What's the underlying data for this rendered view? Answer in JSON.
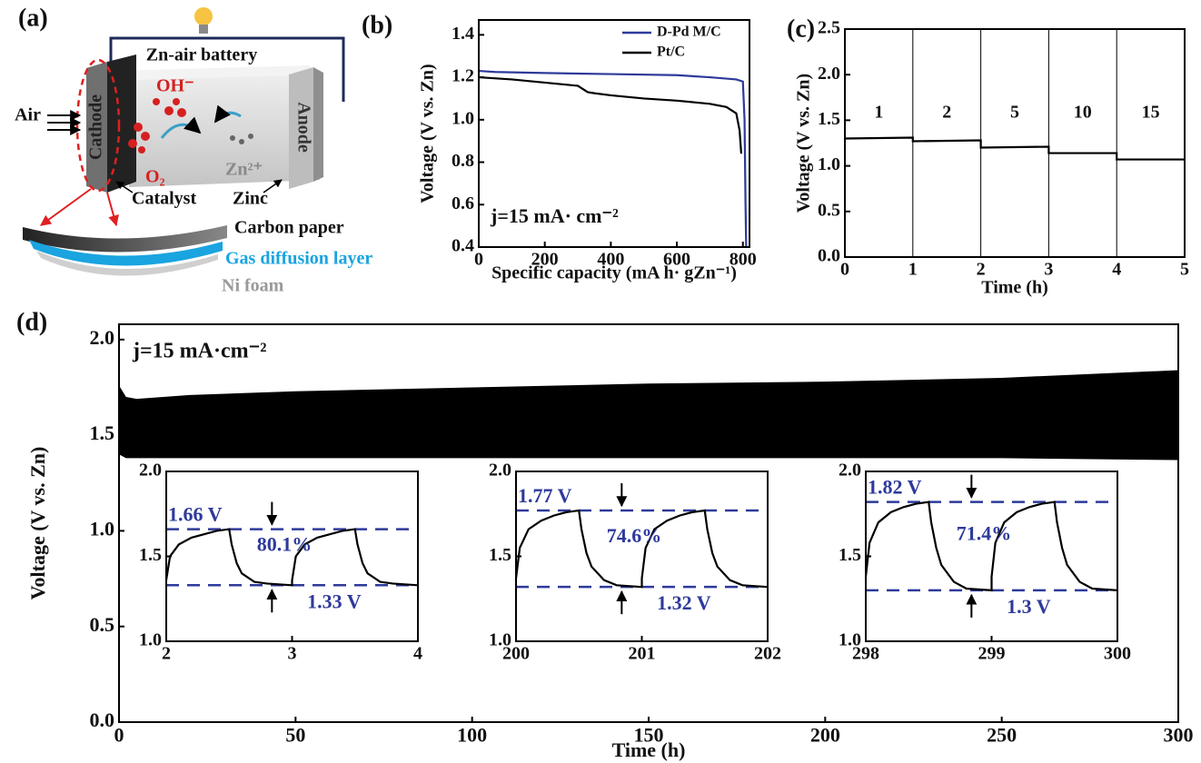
{
  "diagram": {
    "panel_label": "(a)",
    "title": "Zn-air battery",
    "air": "Air",
    "cathode": "Cathode",
    "anode": "Anode",
    "hydroxide": "OH⁻",
    "oxygen": "O₂",
    "zinc_ion": "Zn²⁺",
    "catalyst": "Catalyst",
    "zinc": "Zinc",
    "carbon_paper": "Carbon paper",
    "gas_diffusion_layer": "Gas diffusion layer",
    "ni_foam": "Ni foam"
  },
  "chart_data": [
    {
      "type": "line",
      "panel_label": "(b)",
      "xlabel": "Specific capacity (mA h· gZn⁻¹)",
      "ylabel": "Voltage (V vs. Zn)",
      "annotation": "j=15 mA· cm⁻²",
      "xlim": [
        0,
        820
      ],
      "ylim": [
        0.4,
        1.47
      ],
      "xticks": [
        0,
        200,
        400,
        600,
        800
      ],
      "yticks": [
        0.4,
        0.6,
        0.8,
        {
          "value": 1,
          "label": "1.0"
        },
        1.2,
        1.4
      ],
      "legend": "upper right",
      "series": [
        {
          "name": "D-Pd M/C",
          "color": "#2e3a9a",
          "x": [
            0,
            50,
            200,
            400,
            600,
            700,
            780,
            800,
            805,
            808,
            810
          ],
          "values": [
            1.23,
            1.225,
            1.22,
            1.215,
            1.21,
            1.2,
            1.19,
            1.18,
            1.0,
            0.6,
            0.4
          ]
        },
        {
          "name": "Pt/C",
          "color": "#000000",
          "x": [
            0,
            100,
            200,
            300,
            330,
            350,
            400,
            500,
            600,
            700,
            750,
            780,
            790,
            795
          ],
          "values": [
            1.2,
            1.19,
            1.175,
            1.16,
            1.13,
            1.125,
            1.115,
            1.1,
            1.09,
            1.075,
            1.06,
            1.03,
            0.95,
            0.84
          ]
        }
      ]
    },
    {
      "type": "line",
      "panel_label": "(c)",
      "xlabel": "Time (h)",
      "ylabel": "Voltage (V vs. Zn)",
      "segment_labels": [
        "1",
        "2",
        "5",
        "10",
        "15"
      ],
      "xlim": [
        0,
        5
      ],
      "ylim": [
        0,
        2.5
      ],
      "xticks": [
        0,
        1,
        2,
        3,
        4,
        5
      ],
      "yticks": [
        {
          "value": 0,
          "label": "0.0"
        },
        0.5,
        {
          "value": 1,
          "label": "1.0"
        },
        1.5,
        {
          "value": 2,
          "label": "2.0"
        },
        2.5
      ],
      "xgrid": true,
      "series": [
        {
          "color": "#000000",
          "x": [
            0,
            1,
            1,
            2,
            2,
            3,
            3,
            4,
            4,
            5
          ],
          "values": [
            1.3,
            1.31,
            1.27,
            1.28,
            1.2,
            1.21,
            1.14,
            1.14,
            1.07,
            1.07
          ]
        }
      ]
    },
    {
      "type": "band",
      "panel_label": "(d)",
      "xlabel": "Time (h)",
      "ylabel": "Voltage (V vs. Zn)",
      "annotation": "j=15 mA·cm⁻²",
      "xlim": [
        0,
        300
      ],
      "ylim": [
        0,
        2.08
      ],
      "xticks": [
        0,
        50,
        100,
        150,
        200,
        250,
        300
      ],
      "yticks": [
        {
          "value": 0,
          "label": "0.0"
        },
        0.5,
        {
          "value": 1,
          "label": "1.0"
        },
        1.5,
        {
          "value": 2,
          "label": "2.0"
        }
      ],
      "color": "#000000",
      "x": [
        0,
        2,
        5,
        20,
        50,
        100,
        150,
        200,
        250,
        300
      ],
      "upper": [
        1.76,
        1.7,
        1.69,
        1.71,
        1.73,
        1.75,
        1.77,
        1.78,
        1.8,
        1.84
      ],
      "lower": [
        1.4,
        1.38,
        1.38,
        1.38,
        1.38,
        1.38,
        1.38,
        1.38,
        1.38,
        1.37
      ]
    },
    {
      "type": "line",
      "xlim": [
        2,
        4
      ],
      "ylim": [
        1,
        2
      ],
      "xticks": [
        2,
        3,
        4
      ],
      "yticks": [
        {
          "value": 1,
          "label": "1.0"
        },
        1.5,
        {
          "value": 2,
          "label": "2.0"
        }
      ],
      "ref_color": "#2e3a9a",
      "ref_lines": [
        {
          "value": 1.66,
          "label": "1.66 V"
        },
        {
          "value": 1.33,
          "label": "1.33 V"
        }
      ],
      "efficiency": "80.1%",
      "series": [
        {
          "color": "#000000",
          "x": [
            2,
            2.03,
            2.1,
            2.2,
            2.3,
            2.4,
            2.5,
            2.52,
            2.56,
            2.6,
            2.7,
            2.8,
            3,
            3,
            3.03,
            3.1,
            3.2,
            3.3,
            3.4,
            3.5,
            3.52,
            3.56,
            3.6,
            3.7,
            3.8,
            4
          ],
          "values": [
            1.36,
            1.5,
            1.57,
            1.61,
            1.63,
            1.65,
            1.66,
            1.57,
            1.46,
            1.4,
            1.35,
            1.34,
            1.33,
            1.36,
            1.5,
            1.57,
            1.61,
            1.63,
            1.65,
            1.66,
            1.57,
            1.46,
            1.4,
            1.35,
            1.34,
            1.33
          ]
        }
      ]
    },
    {
      "type": "line",
      "xlim": [
        200,
        202
      ],
      "ylim": [
        1,
        2
      ],
      "xticks": [
        200,
        201,
        202
      ],
      "yticks": [
        {
          "value": 1,
          "label": "1.0"
        },
        1.5,
        {
          "value": 2,
          "label": "2.0"
        }
      ],
      "ref_color": "#2e3a9a",
      "ref_lines": [
        {
          "value": 1.77,
          "label": "1.77 V"
        },
        {
          "value": 1.32,
          "label": "1.32 V"
        }
      ],
      "efficiency": "74.6%",
      "series": [
        {
          "color": "#000000",
          "x": [
            200,
            200.03,
            200.1,
            200.2,
            200.3,
            200.4,
            200.5,
            200.52,
            200.56,
            200.6,
            200.7,
            200.8,
            201,
            201,
            201.03,
            201.1,
            201.2,
            201.3,
            201.4,
            201.5,
            201.52,
            201.56,
            201.6,
            201.7,
            201.8,
            202
          ],
          "values": [
            1.37,
            1.55,
            1.66,
            1.71,
            1.74,
            1.76,
            1.77,
            1.66,
            1.52,
            1.44,
            1.36,
            1.33,
            1.32,
            1.37,
            1.55,
            1.66,
            1.71,
            1.74,
            1.76,
            1.77,
            1.66,
            1.52,
            1.44,
            1.36,
            1.33,
            1.32
          ]
        }
      ]
    },
    {
      "type": "line",
      "xlim": [
        298,
        300
      ],
      "ylim": [
        1,
        2
      ],
      "xticks": [
        298,
        299,
        300
      ],
      "yticks": [
        {
          "value": 1,
          "label": "1.0"
        },
        1.5,
        {
          "value": 2,
          "label": "2.0"
        }
      ],
      "ref_color": "#2e3a9a",
      "ref_lines": [
        {
          "value": 1.82,
          "label": "1.82 V"
        },
        {
          "value": 1.3,
          "label": "1.3 V"
        }
      ],
      "efficiency": "71.4%",
      "series": [
        {
          "color": "#000000",
          "x": [
            298,
            298.03,
            298.1,
            298.2,
            298.3,
            298.4,
            298.5,
            298.52,
            298.56,
            298.6,
            298.7,
            298.8,
            299,
            299,
            299.03,
            299.1,
            299.2,
            299.3,
            299.4,
            299.5,
            299.52,
            299.56,
            299.6,
            299.7,
            299.8,
            300
          ],
          "values": [
            1.38,
            1.58,
            1.7,
            1.76,
            1.79,
            1.81,
            1.82,
            1.7,
            1.55,
            1.45,
            1.35,
            1.31,
            1.3,
            1.38,
            1.58,
            1.7,
            1.76,
            1.79,
            1.81,
            1.82,
            1.7,
            1.55,
            1.45,
            1.35,
            1.31,
            1.3
          ]
        }
      ]
    }
  ]
}
